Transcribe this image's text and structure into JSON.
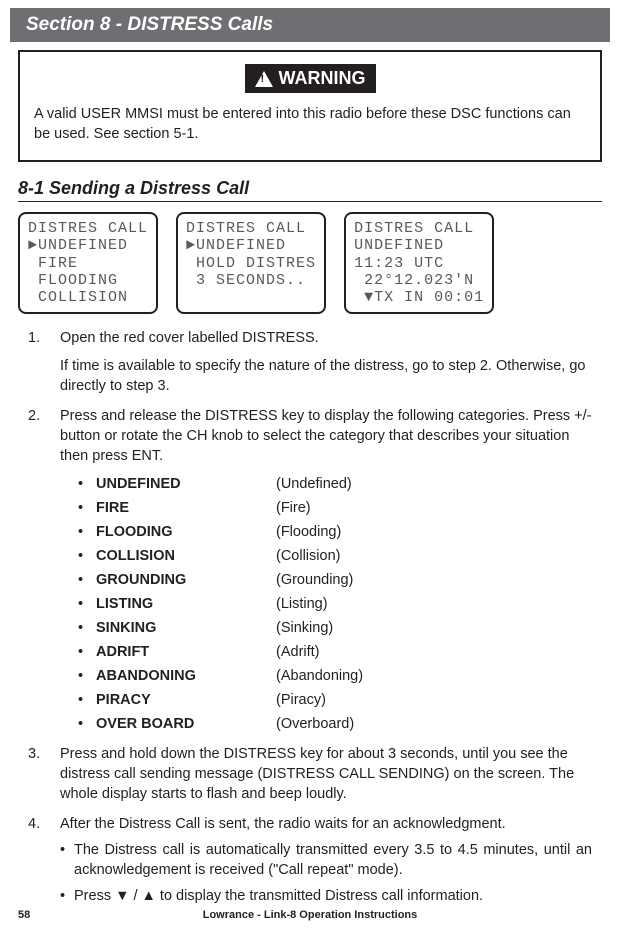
{
  "section_header": "Section 8 - DISTRESS Calls",
  "warning": {
    "label": "WARNING",
    "text": "A valid USER MMSI must be entered into this radio before these DSC functions can be used. See section 5-1."
  },
  "subsection": "8-1 Sending a Distress Call",
  "lcd": {
    "screen1": "DISTRES CALL\n►UNDEFINED\n FIRE\n FLOODING\n COLLISION",
    "screen2": "DISTRES CALL\n►UNDEFINED\n HOLD DISTRES\n 3 SECONDS..",
    "screen3": "DISTRES CALL\nUNDEFINED\n11:23 UTC\n 22°12.023'N\n ▼TX IN 00:01"
  },
  "steps": {
    "s1a": "Open the red cover labelled DISTRESS.",
    "s1b": "If time is available to specify the nature of the distress, go to step 2. Otherwise, go directly to step 3.",
    "s2": "Press and release the DISTRESS key to display the following categories. Press +/- button or rotate the CH knob to select the category that describes your situation then press ENT.",
    "s3": "Press and hold down the DISTRESS key for about 3 seconds, until you see the distress call sending message (DISTRESS CALL SENDING) on the screen. The whole display starts to flash and beep loudly.",
    "s4": "After the Distress Call is sent, the radio waits for an acknowledgment.",
    "s4b1": "The Distress call is automatically transmitted every 3.5 to 4.5 minutes, until an acknowledgement is received (\"Call repeat\" mode).",
    "s4b2": "Press ▼ / ▲ to display the transmitted Distress call information."
  },
  "categories": [
    {
      "term": "UNDEFINED",
      "desc": "(Undefined)"
    },
    {
      "term": "FIRE",
      "desc": "(Fire)"
    },
    {
      "term": "FLOODING",
      "desc": "(Flooding)"
    },
    {
      "term": "COLLISION",
      "desc": "(Collision)"
    },
    {
      "term": "GROUNDING",
      "desc": "(Grounding)"
    },
    {
      "term": "LISTING",
      "desc": "(Listing)"
    },
    {
      "term": "SINKING",
      "desc": "(Sinking)"
    },
    {
      "term": "ADRIFT",
      "desc": "(Adrift)"
    },
    {
      "term": "ABANDONING",
      "desc": "(Abandoning)"
    },
    {
      "term": "PIRACY",
      "desc": "(Piracy)"
    },
    {
      "term": "OVER BOARD",
      "desc": "(Overboard)"
    }
  ],
  "footer": {
    "page": "58",
    "title": "Lowrance - Link-8 Operation Instructions"
  },
  "style": {
    "header_bg": "#6e6f72",
    "text_color": "#231f20",
    "lcd_text": "#58595b"
  }
}
